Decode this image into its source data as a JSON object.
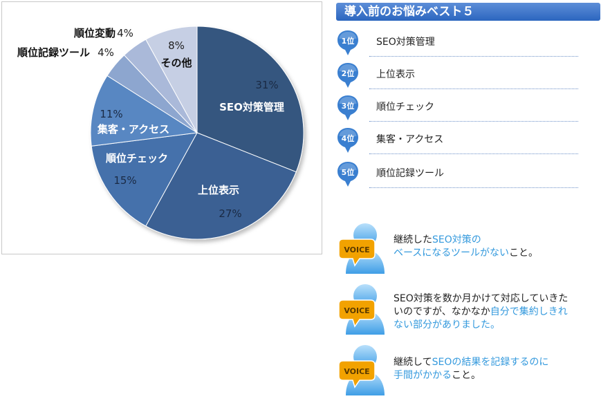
{
  "chart_data": {
    "type": "pie",
    "title": "",
    "start_angle_deg": 0,
    "direction": "clockwise",
    "slices": [
      {
        "label": "SEO対策管理",
        "value": 31,
        "value_label": "31%",
        "color": "#34567f"
      },
      {
        "label": "上位表示",
        "value": 27,
        "value_label": "27%",
        "color": "#3a6193"
      },
      {
        "label": "順位チェック",
        "value": 15,
        "value_label": "15%",
        "color": "#4471ab"
      },
      {
        "label": "集客・アクセス",
        "value": 11,
        "value_label": "11%",
        "color": "#5987c2"
      },
      {
        "label": "順位記録ツール",
        "value": 4,
        "value_label": "4%",
        "color": "#8da6cf"
      },
      {
        "label": "順位変動",
        "value": 4,
        "value_label": "4%",
        "color": "#aab9d9"
      },
      {
        "label": "その他",
        "value": 8,
        "value_label": "8%",
        "color": "#c6cfe4"
      }
    ]
  },
  "ranking": {
    "title": "導入前のお悩みベスト５",
    "items": [
      {
        "rank": "1位",
        "label": "SEO対策管理"
      },
      {
        "rank": "2位",
        "label": "上位表示"
      },
      {
        "rank": "3位",
        "label": "順位チェック"
      },
      {
        "rank": "4位",
        "label": "集客・アクセス"
      },
      {
        "rank": "5位",
        "label": "順位記録ツール"
      }
    ]
  },
  "voices": [
    {
      "badge": "VOICE",
      "segments": [
        {
          "text": "継続した",
          "hl": false
        },
        {
          "text": "SEO対策の",
          "hl": true
        },
        {
          "br": true
        },
        {
          "text": "ベースになるツールがない",
          "hl": true
        },
        {
          "text": "こと。",
          "hl": false
        }
      ]
    },
    {
      "badge": "VOICE",
      "segments": [
        {
          "text": "SEO対策を数か月かけて対応していきた",
          "hl": false
        },
        {
          "br": true
        },
        {
          "text": "いのですが、なかなか",
          "hl": false
        },
        {
          "text": "自分で集約しきれ",
          "hl": true
        },
        {
          "br": true
        },
        {
          "text": "ない部分がありました。",
          "hl": true
        }
      ]
    },
    {
      "badge": "VOICE",
      "segments": [
        {
          "text": "継続して",
          "hl": false
        },
        {
          "text": "SEOの結果を記録するのに",
          "hl": true
        },
        {
          "br": true
        },
        {
          "text": "手間がかかる",
          "hl": true
        },
        {
          "text": "こと。",
          "hl": false
        }
      ]
    }
  ],
  "colors": {
    "badge_blue": "#3a7fd0",
    "voice_badge": "#f2a200",
    "highlight": "#3399dd"
  }
}
